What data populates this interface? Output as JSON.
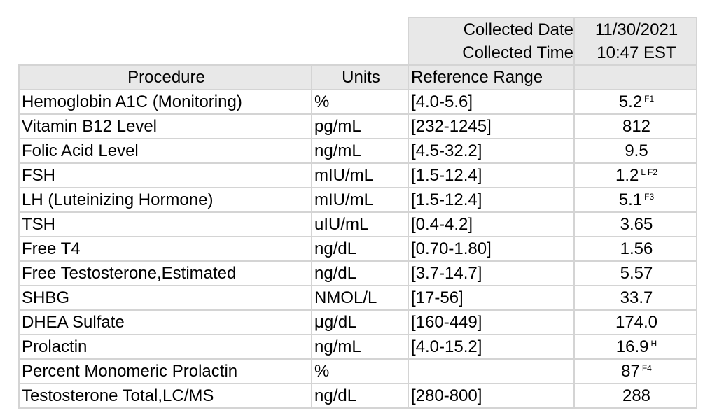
{
  "collection": {
    "date_label": "Collected Date",
    "time_label": "Collected Time",
    "date": "11/30/2021",
    "time": "10:47 EST"
  },
  "headers": {
    "procedure": "Procedure",
    "units": "Units",
    "reference_range": "Reference Range",
    "result": ""
  },
  "rows": [
    {
      "procedure": "Hemoglobin A1C (Monitoring)",
      "units": "%",
      "range": "[4.0-5.6]",
      "result": "5.2",
      "flag": "F1"
    },
    {
      "procedure": "Vitamin B12 Level",
      "units": "pg/mL",
      "range": "[232-1245]",
      "result": "812",
      "flag": ""
    },
    {
      "procedure": "Folic Acid Level",
      "units": "ng/mL",
      "range": "[4.5-32.2]",
      "result": "9.5",
      "flag": ""
    },
    {
      "procedure": "FSH",
      "units": "mIU/mL",
      "range": "[1.5-12.4]",
      "result": "1.2",
      "flag": "L F2"
    },
    {
      "procedure": "LH (Luteinizing Hormone)",
      "units": "mIU/mL",
      "range": "[1.5-12.4]",
      "result": "5.1",
      "flag": "F3"
    },
    {
      "procedure": "TSH",
      "units": "uIU/mL",
      "range": "[0.4-4.2]",
      "result": "3.65",
      "flag": ""
    },
    {
      "procedure": "Free T4",
      "units": "ng/dL",
      "range": "[0.70-1.80]",
      "result": "1.56",
      "flag": ""
    },
    {
      "procedure": "Free Testosterone,Estimated",
      "units": "ng/dL",
      "range": "[3.7-14.7]",
      "result": "5.57",
      "flag": ""
    },
    {
      "procedure": "SHBG",
      "units": "NMOL/L",
      "range": "[17-56]",
      "result": "33.7",
      "flag": ""
    },
    {
      "procedure": "DHEA Sulfate",
      "units": "μg/dL",
      "range": "[160-449]",
      "result": "174.0",
      "flag": ""
    },
    {
      "procedure": "Prolactin",
      "units": "ng/mL",
      "range": "[4.0-15.2]",
      "result": "16.9",
      "flag": "H"
    },
    {
      "procedure": "Percent Monomeric Prolactin",
      "units": "%",
      "range": "",
      "result": "87",
      "flag": "F4"
    },
    {
      "procedure": "Testosterone Total,LC/MS",
      "units": "ng/dL",
      "range": "[280-800]",
      "result": "288",
      "flag": ""
    }
  ]
}
